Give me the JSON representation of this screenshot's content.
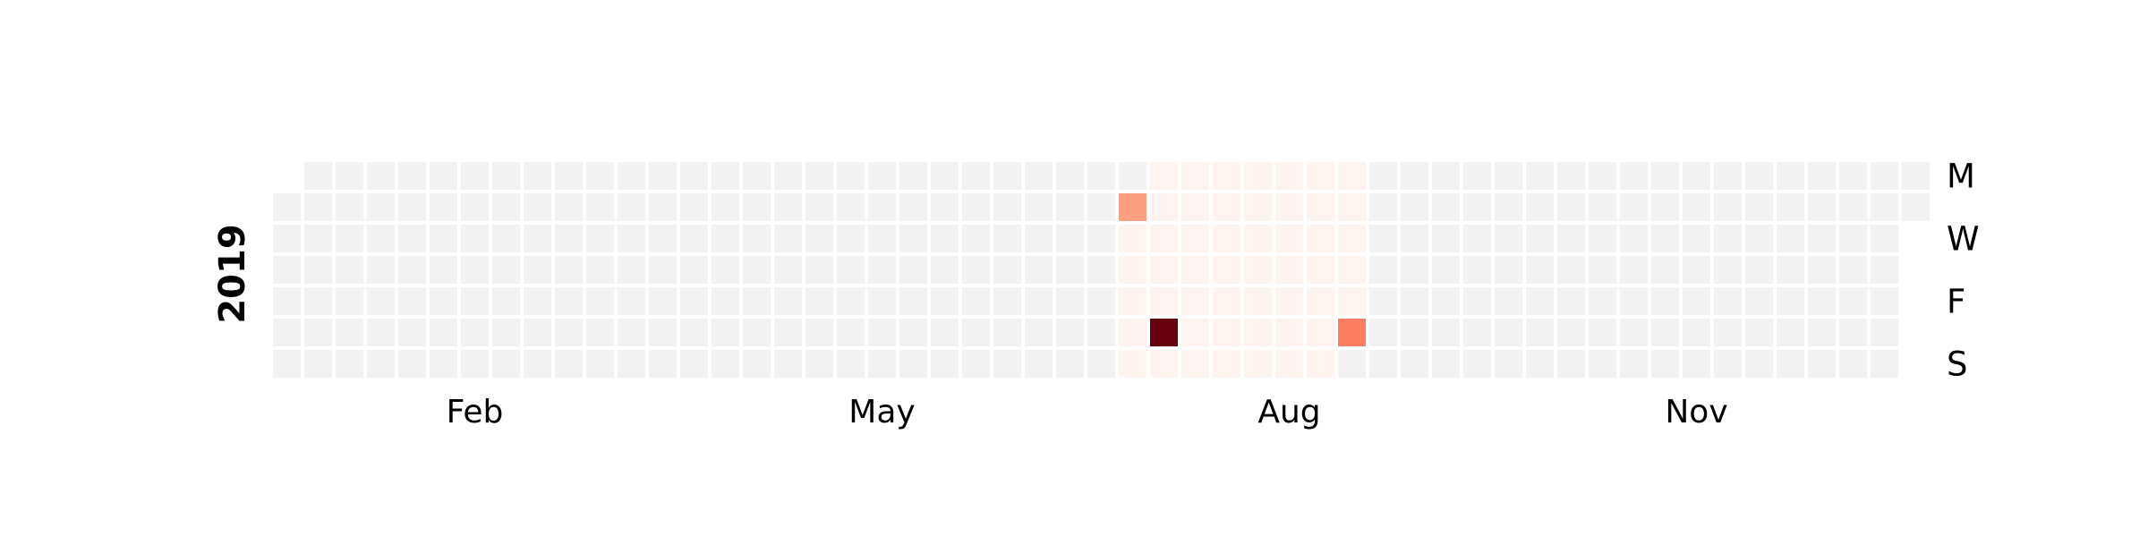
{
  "chart_data": {
    "type": "heatmap",
    "subtype": "calendar",
    "year_label": "2019",
    "start_date": "2019-01-01",
    "end_date": "2019-12-31",
    "month_labels": [
      {
        "text": "Feb"
      },
      {
        "text": "May"
      },
      {
        "text": "Aug"
      },
      {
        "text": "Nov"
      }
    ],
    "day_labels": [
      "M",
      "W",
      "F",
      "S"
    ],
    "colors": {
      "empty": "#f2f2f2",
      "faint": "#fff3ef",
      "low": "#fc9f80",
      "mid": "#fb7e60",
      "high": "#67000d"
    },
    "highlighted_days": [
      {
        "date": "2019-07-09",
        "level": "low"
      },
      {
        "date": "2019-07-20",
        "level": "high"
      },
      {
        "date": "2019-08-31",
        "level": "mid"
      }
    ],
    "faint_range": {
      "start": "2019-07-09",
      "end": "2019-08-31"
    }
  }
}
